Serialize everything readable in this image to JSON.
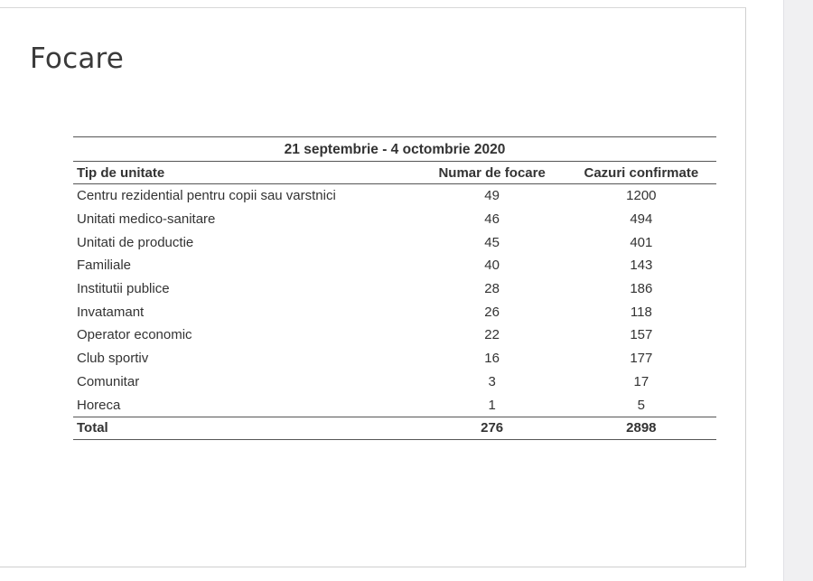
{
  "title": "Focare",
  "table": {
    "period": "21 septembrie - 4 octombrie 2020",
    "headers": [
      "Tip de unitate",
      "Numar de focare",
      "Cazuri confirmate"
    ],
    "rows": [
      [
        "Centru rezidential pentru copii sau varstnici",
        "49",
        "1200"
      ],
      [
        "Unitati medico-sanitare",
        "46",
        "494"
      ],
      [
        "Unitati de productie",
        "45",
        "401"
      ],
      [
        "Familiale",
        "40",
        "143"
      ],
      [
        "Institutii publice",
        "28",
        "186"
      ],
      [
        "Invatamant",
        "26",
        "118"
      ],
      [
        "Operator economic",
        "22",
        "157"
      ],
      [
        "Club sportiv",
        "16",
        "177"
      ],
      [
        "Comunitar",
        "3",
        "17"
      ],
      [
        "Horeca",
        "1",
        "5"
      ]
    ],
    "total": [
      "Total",
      "276",
      "2898"
    ]
  }
}
